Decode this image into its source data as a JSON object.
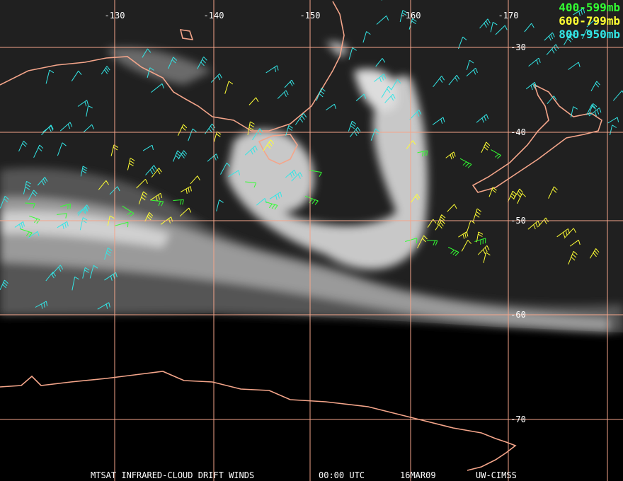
{
  "map": {
    "longitude_labels": [
      "-130",
      "-140",
      "-150",
      "-160",
      "-170"
    ],
    "latitude_labels": [
      "-30",
      "-40",
      "-50",
      "-60",
      "-70"
    ],
    "legend": [
      {
        "label": "400-599mb",
        "color": "#33ff33"
      },
      {
        "label": "600-799mb",
        "color": "#ffff33"
      },
      {
        "label": "800-950mb",
        "color": "#33e6e6"
      }
    ],
    "footer": [
      "MTSAT INFRARED-CLOUD DRIFT WINDS",
      "00:00 UTC",
      "16MAR09",
      "UW-CIMSS"
    ]
  }
}
